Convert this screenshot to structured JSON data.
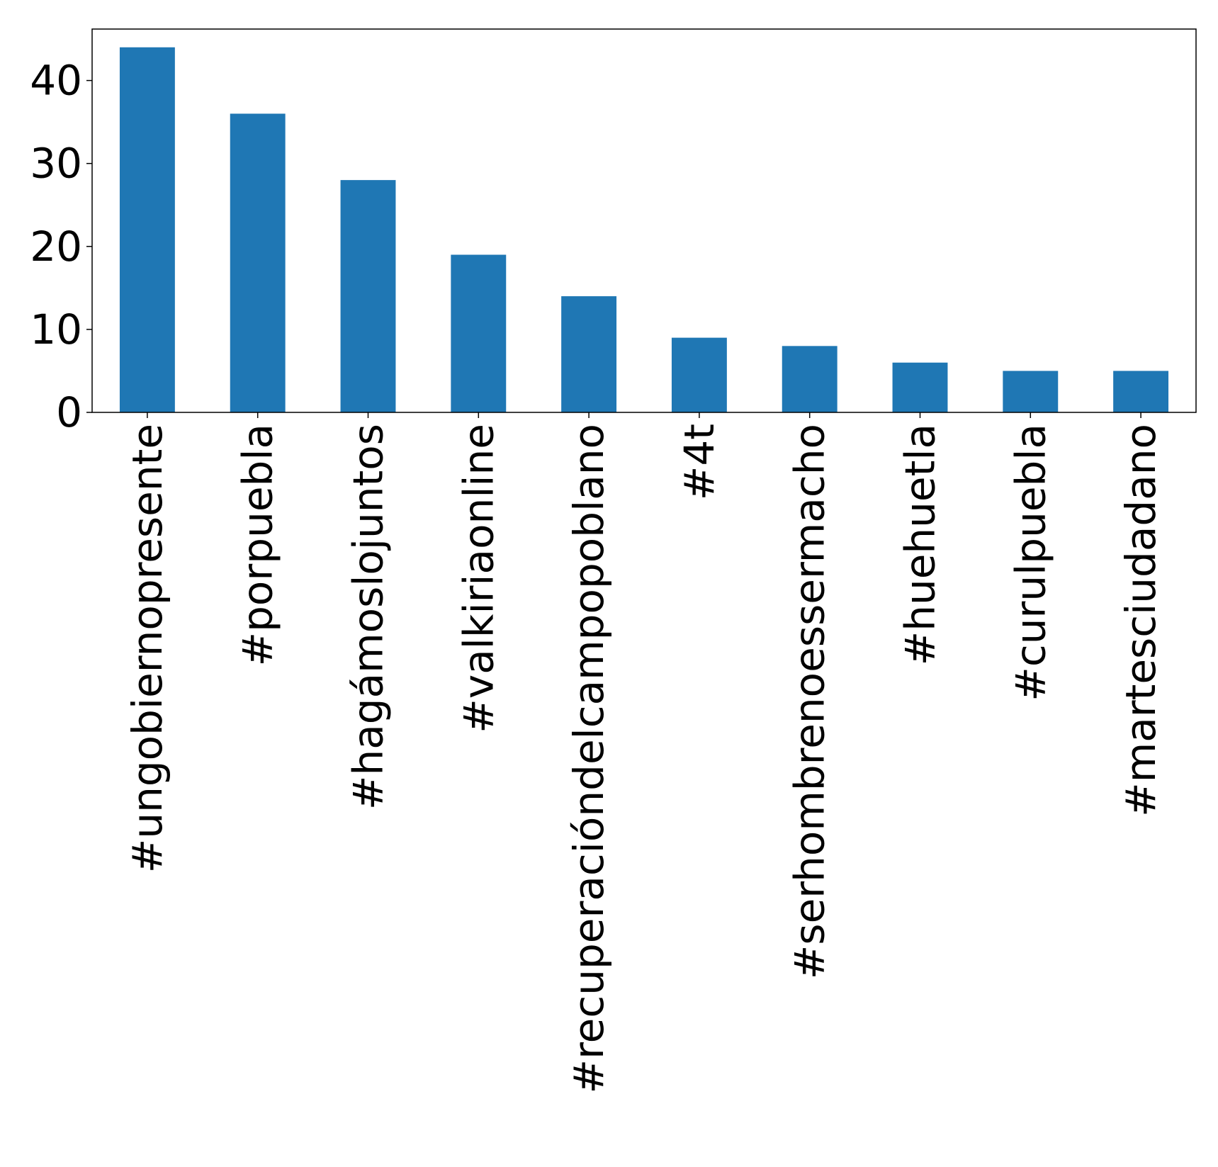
{
  "chart_data": {
    "type": "bar",
    "categories": [
      "#ungobiernopresente",
      "#porpuebla",
      "#hagámoslojuntos",
      "#valkiriaonline",
      "#recuperacióndelcampopoblano",
      "#4t",
      "#serhombrenoessermacho",
      "#huehuetla",
      "#curulpuebla",
      "#martesciudadano"
    ],
    "values": [
      44,
      36,
      28,
      19,
      14,
      9,
      8,
      6,
      5,
      5
    ],
    "title": "",
    "xlabel": "",
    "ylabel": "",
    "ylim": [
      0,
      46.2
    ],
    "yticks": [
      0,
      10,
      20,
      30,
      40
    ],
    "grid": false,
    "bar_color": "#1f77b4",
    "x_tick_rotation_deg": 90
  }
}
